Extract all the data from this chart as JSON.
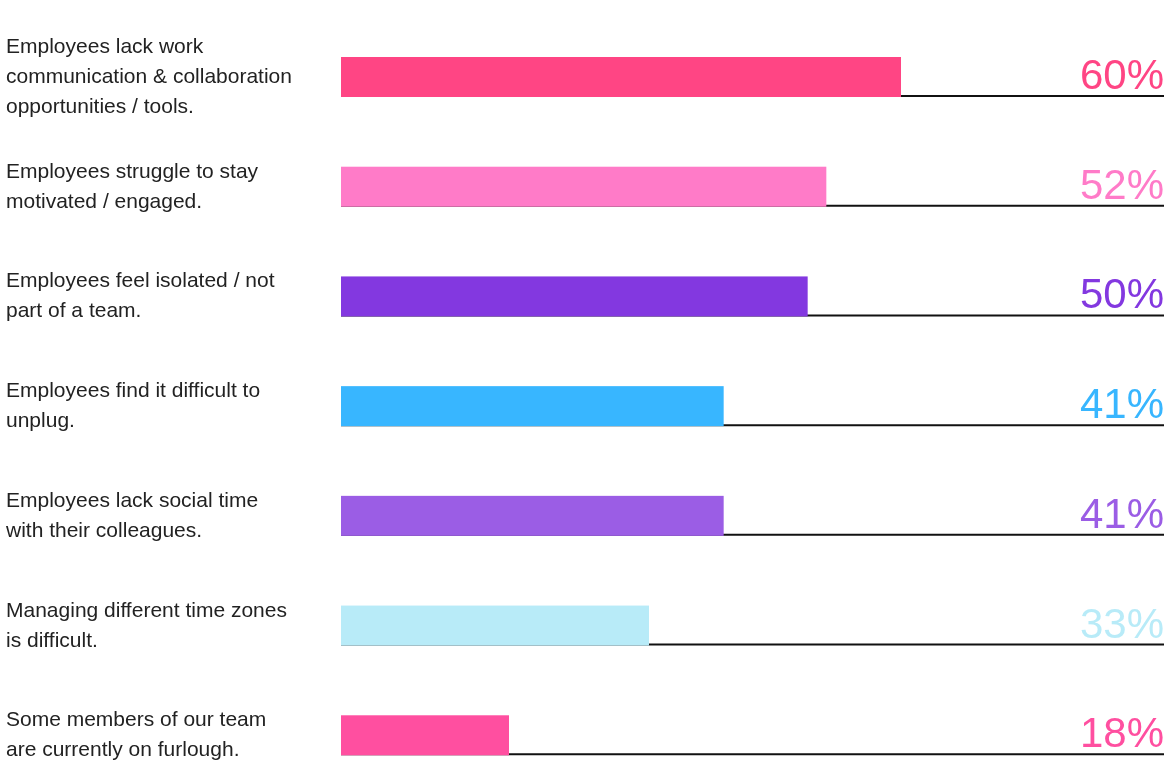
{
  "chart_data": {
    "type": "bar",
    "orientation": "horizontal",
    "categories": [
      "Employees lack work communication & collaboration opportunities / tools.",
      "Employees struggle to stay motivated / engaged.",
      "Employees feel isolated / not part of a team.",
      "Employees find it difficult to unplug.",
      "Employees lack social time with their colleagues.",
      "Managing different time zones is difficult.",
      "Some members of our team are currently on furlough."
    ],
    "values": [
      60,
      52,
      50,
      41,
      41,
      33,
      18
    ],
    "colors": [
      "#ff4584",
      "#ff7bc8",
      "#8338e0",
      "#38b6ff",
      "#9b5de5",
      "#b8ebf8",
      "#ff4fa0"
    ],
    "value_labels": [
      "60%",
      "52%",
      "50%",
      "41%",
      "41%",
      "33%",
      "18%"
    ]
  }
}
